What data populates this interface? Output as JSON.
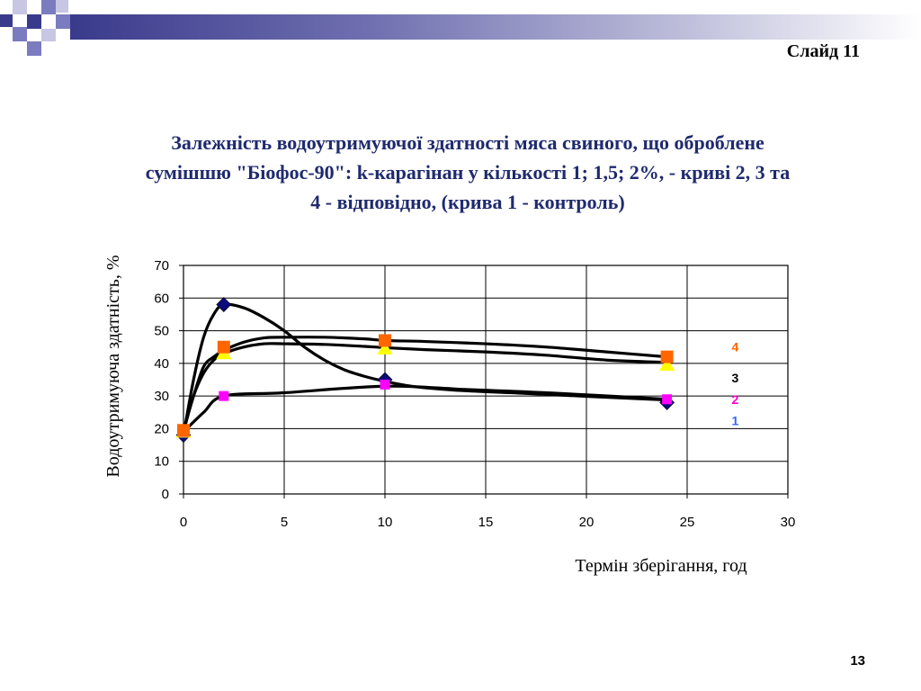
{
  "slide": {
    "label": "Слайд 11",
    "page_number": "13"
  },
  "colors": {
    "deco_dark": "#3a3a8c",
    "deco_mid": "#7b7bc0",
    "deco_light": "#c7c7e3",
    "title_color": "#1f2a6e",
    "series1_marker": "#0b0b7a",
    "series2_marker": "#ff00ff",
    "series3_marker": "#ffff00",
    "series4_marker": "#ff6600",
    "label1": "#3366ff",
    "label2": "#ff00cc",
    "label3": "#000000",
    "label4": "#ff6600",
    "line": "#000000"
  },
  "chart_data": {
    "type": "scatter",
    "title": "Залежність водоутримуючої здатності мяса свиного, що оброблене сумішшю \"Біофос-90\": k-карагінан у кількості 1; 1,5;  2%,  - криві 2, 3 та 4 - відповідно, (крива 1 - контроль)",
    "xlabel": "Термін зберігання, год",
    "ylabel": "Водоутримуюча здатність, %",
    "xlim": [
      0,
      30
    ],
    "ylim": [
      0,
      70
    ],
    "xticks": [
      "0",
      "5",
      "10",
      "15",
      "20",
      "25",
      "30"
    ],
    "yticks": [
      "0",
      "10",
      "20",
      "30",
      "40",
      "50",
      "60",
      "70"
    ],
    "grid": true,
    "series": [
      {
        "name": "1",
        "marker": "diamond",
        "x": [
          0,
          2,
          10,
          24
        ],
        "y": [
          18,
          58,
          35,
          28
        ]
      },
      {
        "name": "2",
        "marker": "square",
        "x": [
          0,
          2,
          10,
          24
        ],
        "y": [
          19,
          30,
          33.5,
          29
        ]
      },
      {
        "name": "3",
        "marker": "triangle",
        "x": [
          0,
          2,
          10,
          24
        ],
        "y": [
          19,
          43,
          44.5,
          39.5
        ]
      },
      {
        "name": "4",
        "marker": "square",
        "x": [
          0,
          2,
          10,
          24
        ],
        "y": [
          19.5,
          45,
          47,
          42
        ]
      }
    ],
    "curves": [
      {
        "series": "1",
        "x": [
          0,
          0.5,
          1,
          1.5,
          2,
          3,
          4,
          5,
          6,
          7,
          8,
          9,
          10,
          11,
          12,
          14,
          17,
          20,
          24
        ],
        "y": [
          18,
          35,
          48,
          55,
          58,
          57,
          54,
          50,
          45,
          41,
          38,
          36,
          34.5,
          33.3,
          32.5,
          31.6,
          30.8,
          29.9,
          28.8
        ]
      },
      {
        "series": "2",
        "x": [
          0,
          1,
          2,
          5,
          10,
          14,
          18,
          24
        ],
        "y": [
          19,
          25,
          30,
          31,
          33,
          32,
          31,
          29
        ]
      },
      {
        "series": "3",
        "x": [
          0,
          0.5,
          1,
          1.5,
          2,
          3,
          4,
          5,
          7,
          9,
          10,
          12,
          15,
          18,
          21,
          24
        ],
        "y": [
          19,
          30,
          37,
          41,
          43,
          45,
          46,
          46,
          45.8,
          45.2,
          44.8,
          44.2,
          43.5,
          42.5,
          41,
          40.3
        ]
      },
      {
        "series": "4",
        "x": [
          0,
          0.5,
          1,
          1.5,
          2,
          3,
          4,
          5,
          7,
          9,
          10,
          12,
          15,
          18,
          21,
          24
        ],
        "y": [
          19.5,
          30,
          39,
          42,
          44,
          46.5,
          47.8,
          48,
          48,
          47.5,
          47,
          46.7,
          46,
          45,
          43.5,
          42
        ]
      }
    ],
    "series_labels": [
      {
        "text": "4",
        "x": 26,
        "y": 45
      },
      {
        "text": "3",
        "x": 26,
        "y": 35.5
      },
      {
        "text": "2",
        "x": 26,
        "y": 29
      },
      {
        "text": "1",
        "x": 26,
        "y": 22.5
      }
    ]
  }
}
